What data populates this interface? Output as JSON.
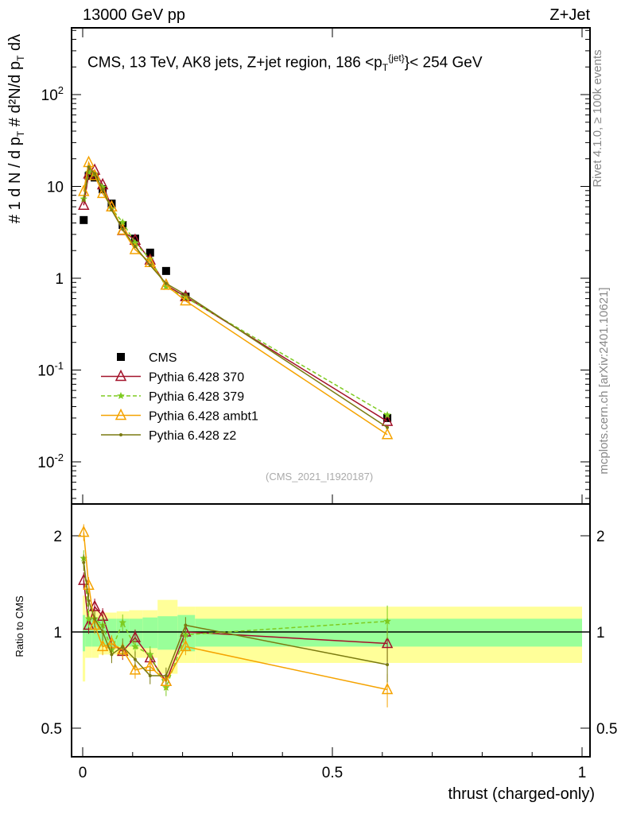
{
  "header": {
    "left": "13000 GeV pp",
    "right": "Z+Jet"
  },
  "side": {
    "rivet": "Rivet 4.1.0, ≥ 100k events",
    "mcplots": "mcplots.cern.ch [arXiv:2401.10621]"
  },
  "chart_data": {
    "type": "line",
    "title": "CMS, 13 TeV, AK8 jets, Z+jet region, 186 <p_T^{jet}< 254 GeV",
    "title_parts": {
      "main": "CMS, 13 TeV, AK8 jets, Z+jet region, 186 <p",
      "sub": "T",
      "sup": "{jet}",
      "end": "}< 254 GeV"
    },
    "xlabel": "thrust (charged-only)",
    "ylabel": "1/N dN/dp_T d^2N/dp_T dλ",
    "ylabel_parts": {
      "a": "#",
      "b": "1",
      "c": "d N / d p",
      "d": "T",
      "e": "#",
      "f": "d²N",
      "g": "d p",
      "h": "T",
      "i": "dλ"
    },
    "ratio_ylabel": "Ratio to CMS",
    "watermark": "(CMS_2021_I1920187)",
    "xlim": [
      -0.02,
      1.02
    ],
    "ylim": [
      0.003,
      400
    ],
    "ratio_ylim": [
      0.43,
      2.35
    ],
    "xticks": [
      {
        "v": 0,
        "l": "0"
      },
      {
        "v": 0.5,
        "l": "0.5"
      },
      {
        "v": 1,
        "l": "1"
      }
    ],
    "yticks": [
      {
        "v": 0.01,
        "b": "10",
        "e": "-2"
      },
      {
        "v": 0.1,
        "b": "10",
        "e": "-1"
      },
      {
        "v": 1,
        "b": "1",
        "e": ""
      },
      {
        "v": 10,
        "b": "10",
        "e": ""
      },
      {
        "v": 100,
        "b": "10",
        "e": "2"
      }
    ],
    "ratio_yticks": [
      {
        "v": 0.5,
        "l": "0.5"
      },
      {
        "v": 1,
        "l": "1"
      },
      {
        "v": 2,
        "l": "2"
      }
    ],
    "x": [
      0.002,
      0.012,
      0.024,
      0.04,
      0.058,
      0.08,
      0.105,
      0.135,
      0.167,
      0.206,
      0.61
    ],
    "bin_edges": [
      0,
      0.005,
      0.018,
      0.032,
      0.05,
      0.068,
      0.093,
      0.12,
      0.15,
      0.19,
      0.225,
      1.0
    ],
    "band_inner": [
      0.13,
      0.1,
      0.1,
      0.1,
      0.1,
      0.1,
      0.1,
      0.11,
      0.12,
      0.13,
      0.1
    ],
    "band_outer": [
      0.3,
      0.17,
      0.17,
      0.15,
      0.15,
      0.16,
      0.17,
      0.17,
      0.26,
      0.2,
      0.2
    ],
    "series": [
      {
        "name": "CMS",
        "color": "#000000",
        "marker": "square",
        "values": [
          4.3,
          13,
          12.5,
          9.3,
          6.5,
          3.8,
          2.7,
          1.9,
          1.2,
          0.63,
          0.03
        ]
      },
      {
        "name": "Pythia 6.428 370",
        "color": "#a3122a",
        "marker": "triangle",
        "dash": "",
        "ratio": [
          1.45,
          1.05,
          1.2,
          1.12,
          0.92,
          0.87,
          0.96,
          0.83,
          0.7,
          1.0,
          0.92
        ]
      },
      {
        "name": "Pythia 6.428 379",
        "color": "#7ecb20",
        "marker": "star",
        "dash": "5,3",
        "ratio": [
          1.7,
          1.1,
          1.1,
          1.05,
          0.88,
          1.07,
          0.9,
          0.85,
          0.67,
          0.98,
          1.08
        ]
      },
      {
        "name": "Pythia 6.428 ambt1",
        "color": "#f5a300",
        "marker": "triangle",
        "dash": "",
        "ratio": [
          2.05,
          1.4,
          1.05,
          0.9,
          0.92,
          0.88,
          0.76,
          0.78,
          0.7,
          0.9,
          0.66
        ]
      },
      {
        "name": "Pythia 6.428 z2",
        "color": "#7a7a10",
        "marker": "dot",
        "dash": "",
        "ratio": [
          1.65,
          1.25,
          1.1,
          1.0,
          0.85,
          0.9,
          0.82,
          0.73,
          0.73,
          1.05,
          0.79
        ]
      }
    ]
  }
}
